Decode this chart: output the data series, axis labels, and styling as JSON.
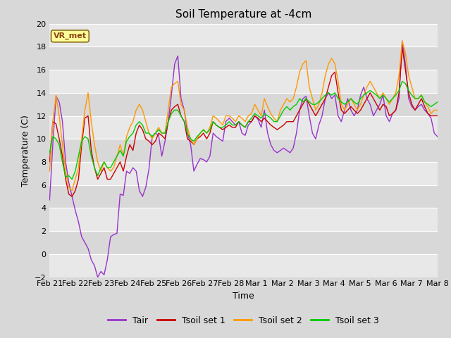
{
  "title": "Soil Temperature at -4cm",
  "xlabel": "Time",
  "ylabel": "Temperature (C)",
  "ylim": [
    -2,
    20
  ],
  "fig_bg_color": "#d8d8d8",
  "plot_bg_color": "#e8e8e8",
  "band_colors": [
    "#e0e0e0",
    "#d0d0d0"
  ],
  "annotation_text": "VR_met",
  "annotation_bg": "#ffff99",
  "annotation_border": "#8B4513",
  "legend_entries": [
    "Tair",
    "Tsoil set 1",
    "Tsoil set 2",
    "Tsoil set 3"
  ],
  "line_colors": [
    "#9933cc",
    "#cc0000",
    "#ff9900",
    "#00cc00"
  ],
  "xtick_labels": [
    "Feb 21",
    "Feb 22",
    "Feb 23",
    "Feb 24",
    "Feb 25",
    "Feb 26",
    "Feb 27",
    "Feb 28",
    "Mar 1",
    "Mar 2",
    "Mar 3",
    "Mar 4",
    "Mar 5",
    "Mar 6",
    "Mar 7",
    "Mar 8"
  ],
  "tair": [
    4.7,
    9.5,
    13.7,
    13.2,
    11.5,
    8.0,
    6.2,
    5.0,
    3.8,
    2.8,
    1.5,
    1.0,
    0.5,
    -0.5,
    -1.0,
    -2.0,
    -1.5,
    -1.8,
    -0.5,
    1.5,
    1.7,
    1.8,
    5.2,
    5.1,
    7.2,
    7.0,
    7.5,
    7.2,
    5.5,
    5.0,
    5.8,
    7.4,
    10.2,
    10.5,
    10.3,
    8.5,
    9.8,
    11.5,
    13.8,
    16.5,
    17.2,
    13.5,
    12.5,
    10.5,
    9.5,
    7.2,
    7.8,
    8.3,
    8.2,
    8.0,
    8.5,
    10.5,
    10.2,
    10.0,
    9.8,
    11.5,
    11.8,
    11.5,
    11.2,
    11.5,
    10.5,
    10.3,
    11.2,
    11.5,
    12.0,
    11.7,
    11.0,
    12.5,
    10.5,
    9.5,
    9.0,
    8.8,
    9.0,
    9.2,
    9.0,
    8.8,
    9.2,
    10.5,
    12.5,
    13.5,
    13.7,
    12.0,
    10.5,
    10.0,
    11.2,
    12.0,
    13.5,
    14.0,
    13.5,
    13.8,
    12.0,
    11.5,
    12.5,
    13.5,
    12.5,
    12.0,
    12.5,
    13.8,
    14.5,
    13.5,
    13.0,
    12.0,
    12.5,
    13.0,
    13.8,
    12.0,
    11.5,
    12.2,
    12.5,
    13.5,
    18.5,
    16.5,
    13.5,
    12.8,
    12.5,
    12.8,
    13.0,
    12.5,
    12.2,
    11.8,
    10.5,
    10.2
  ],
  "tsoil1": [
    8.0,
    11.5,
    11.3,
    10.0,
    8.5,
    6.5,
    5.2,
    5.0,
    5.5,
    6.5,
    9.5,
    11.8,
    12.0,
    9.0,
    7.5,
    6.5,
    7.0,
    7.5,
    6.5,
    6.5,
    7.0,
    7.5,
    8.0,
    7.2,
    8.5,
    9.5,
    9.0,
    10.5,
    11.2,
    10.8,
    10.0,
    9.8,
    9.5,
    9.8,
    10.5,
    10.3,
    10.0,
    11.5,
    12.5,
    12.8,
    13.0,
    12.0,
    11.5,
    10.0,
    9.8,
    9.5,
    10.0,
    10.2,
    10.5,
    10.0,
    10.5,
    11.5,
    11.2,
    11.0,
    10.8,
    11.0,
    11.2,
    11.0,
    11.0,
    11.5,
    11.2,
    11.0,
    11.5,
    11.5,
    12.0,
    11.8,
    11.5,
    11.8,
    11.5,
    11.2,
    11.0,
    10.8,
    11.0,
    11.2,
    11.5,
    11.5,
    11.5,
    12.0,
    12.5,
    13.0,
    13.5,
    13.0,
    12.5,
    12.0,
    12.5,
    13.0,
    13.5,
    14.5,
    15.5,
    15.8,
    14.0,
    12.5,
    12.2,
    12.5,
    12.8,
    12.5,
    12.2,
    12.5,
    13.0,
    13.5,
    14.0,
    13.5,
    13.0,
    12.5,
    13.0,
    12.8,
    12.0,
    12.2,
    12.5,
    14.0,
    18.0,
    16.0,
    14.0,
    13.0,
    12.5,
    13.0,
    13.5,
    12.8,
    12.2,
    12.0,
    12.0,
    12.0
  ],
  "tsoil2": [
    7.2,
    11.5,
    13.8,
    12.0,
    9.5,
    7.2,
    5.8,
    5.5,
    6.5,
    7.5,
    10.0,
    12.5,
    14.0,
    11.5,
    9.5,
    8.0,
    7.2,
    8.0,
    7.5,
    7.2,
    7.5,
    8.5,
    9.5,
    8.5,
    10.2,
    11.0,
    11.5,
    12.5,
    13.0,
    12.5,
    11.5,
    10.5,
    10.0,
    10.5,
    11.0,
    10.5,
    10.5,
    12.5,
    14.5,
    14.8,
    15.0,
    13.0,
    12.5,
    11.0,
    10.0,
    9.5,
    10.0,
    10.5,
    10.8,
    10.5,
    11.0,
    12.0,
    11.8,
    11.5,
    11.2,
    12.0,
    12.0,
    11.8,
    11.5,
    12.0,
    11.8,
    11.5,
    12.0,
    12.2,
    13.0,
    12.5,
    12.0,
    13.5,
    12.8,
    12.2,
    11.8,
    11.5,
    12.5,
    13.0,
    13.5,
    13.2,
    13.5,
    14.5,
    15.8,
    16.5,
    16.8,
    14.5,
    13.5,
    12.5,
    13.0,
    14.0,
    15.5,
    16.5,
    17.0,
    16.5,
    15.0,
    13.0,
    12.5,
    13.0,
    13.5,
    13.0,
    12.5,
    13.0,
    13.8,
    14.5,
    15.0,
    14.5,
    14.0,
    13.5,
    14.0,
    13.5,
    13.0,
    13.5,
    14.0,
    15.5,
    18.5,
    17.5,
    15.5,
    14.5,
    13.5,
    13.5,
    13.8,
    13.2,
    12.8,
    12.2,
    12.5,
    12.5
  ],
  "tsoil3": [
    8.8,
    10.2,
    10.0,
    9.5,
    8.0,
    6.7,
    6.8,
    6.5,
    7.2,
    8.5,
    9.8,
    10.2,
    10.0,
    8.5,
    7.5,
    6.8,
    7.5,
    8.0,
    7.5,
    7.5,
    8.0,
    8.5,
    9.0,
    8.5,
    9.8,
    10.2,
    10.5,
    11.2,
    11.5,
    11.2,
    10.5,
    10.5,
    10.2,
    10.5,
    10.8,
    10.5,
    10.5,
    11.5,
    12.2,
    12.5,
    12.5,
    12.0,
    11.5,
    10.5,
    10.0,
    9.8,
    10.2,
    10.5,
    10.8,
    10.5,
    10.8,
    11.5,
    11.2,
    11.0,
    11.0,
    11.2,
    11.5,
    11.2,
    11.2,
    11.5,
    11.2,
    11.0,
    11.5,
    11.8,
    12.2,
    12.0,
    11.8,
    12.2,
    12.0,
    11.8,
    11.5,
    11.5,
    12.0,
    12.5,
    12.8,
    12.5,
    12.8,
    13.0,
    13.5,
    13.2,
    13.5,
    13.2,
    13.0,
    13.0,
    13.2,
    13.5,
    13.8,
    14.0,
    13.8,
    14.0,
    13.5,
    13.2,
    13.0,
    13.2,
    13.5,
    13.2,
    13.0,
    13.5,
    13.8,
    14.0,
    14.2,
    14.0,
    13.8,
    13.5,
    13.8,
    13.5,
    13.2,
    13.5,
    13.8,
    14.2,
    15.0,
    14.8,
    14.2,
    13.8,
    13.5,
    13.5,
    13.8,
    13.2,
    13.0,
    12.8,
    13.0,
    13.2
  ],
  "yticks": [
    -2,
    0,
    2,
    4,
    6,
    8,
    10,
    12,
    14,
    16,
    18,
    20
  ],
  "grid_color": "#ffffff",
  "title_fontsize": 11,
  "label_fontsize": 9,
  "tick_fontsize": 8,
  "legend_fontsize": 9,
  "line_width": 1.0
}
